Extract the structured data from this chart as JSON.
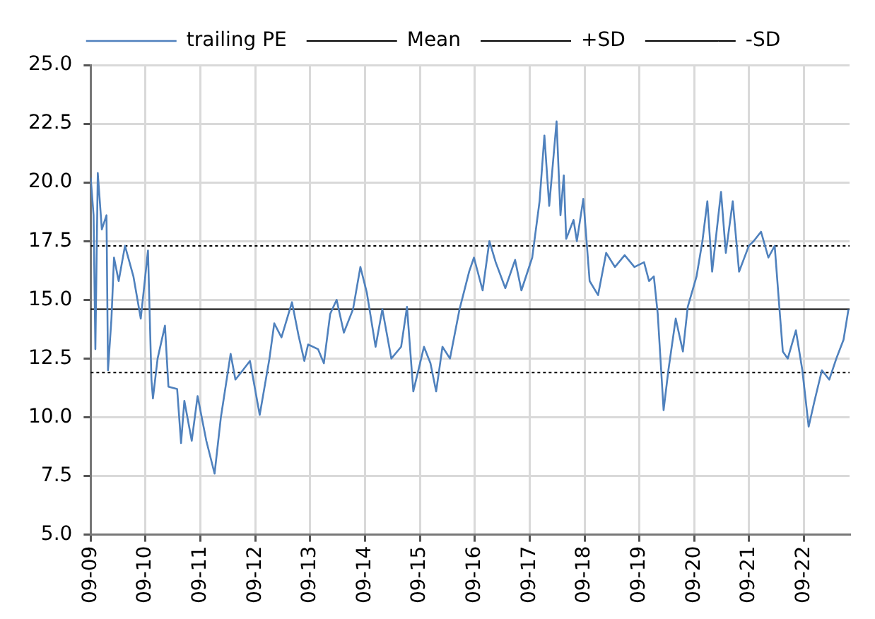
{
  "chart_data": {
    "type": "line",
    "legend": "top",
    "grid": true,
    "xlim": [
      "2009-09-01",
      "2023-07-01"
    ],
    "xticks": [
      {
        "value": "2009-09-01",
        "label": "09-09"
      },
      {
        "value": "2010-09-01",
        "label": "09-10"
      },
      {
        "value": "2011-09-01",
        "label": "09-11"
      },
      {
        "value": "2012-09-01",
        "label": "09-12"
      },
      {
        "value": "2013-09-01",
        "label": "09-13"
      },
      {
        "value": "2014-09-01",
        "label": "09-14"
      },
      {
        "value": "2015-09-01",
        "label": "09-15"
      },
      {
        "value": "2016-09-01",
        "label": "09-16"
      },
      {
        "value": "2017-09-01",
        "label": "09-17"
      },
      {
        "value": "2018-09-01",
        "label": "09-18"
      },
      {
        "value": "2019-09-01",
        "label": "09-19"
      },
      {
        "value": "2020-09-01",
        "label": "09-20"
      },
      {
        "value": "2021-09-01",
        "label": "09-21"
      },
      {
        "value": "2022-09-01",
        "label": "09-22"
      }
    ],
    "ylim": [
      5,
      25
    ],
    "yticks": [
      {
        "value": 5,
        "label": "5.0"
      },
      {
        "value": 7.5,
        "label": "7.5"
      },
      {
        "value": 10,
        "label": "10.0"
      },
      {
        "value": 12.5,
        "label": "12.5"
      },
      {
        "value": 15,
        "label": "15.0"
      },
      {
        "value": 17.5,
        "label": "17.5"
      },
      {
        "value": 20,
        "label": "20.0"
      },
      {
        "value": 22.5,
        "label": "22.5"
      },
      {
        "value": 25,
        "label": "25.0"
      }
    ],
    "series": [
      {
        "name": "trailing PE",
        "color": "#4f81bd",
        "x": [
          "2009-09-01",
          "2009-09-20",
          "2009-10-02",
          "2009-10-18",
          "2009-11-14",
          "2009-12-15",
          "2009-12-25",
          "2010-01-17",
          "2010-02-03",
          "2010-03-06",
          "2010-04-17",
          "2010-06-12",
          "2010-07-31",
          "2010-09-17",
          "2010-10-10",
          "2010-10-20",
          "2010-11-20",
          "2011-01-08",
          "2011-01-31",
          "2011-03-30",
          "2011-04-25",
          "2011-05-17",
          "2011-07-05",
          "2011-08-13",
          "2011-10-10",
          "2011-12-04",
          "2012-01-15",
          "2012-03-20",
          "2012-04-21",
          "2012-06-09",
          "2012-07-27",
          "2012-09-30",
          "2012-12-04",
          "2013-01-05",
          "2013-02-22",
          "2013-05-03",
          "2013-06-15",
          "2013-07-24",
          "2013-08-18",
          "2013-10-23",
          "2013-12-01",
          "2014-01-12",
          "2014-02-24",
          "2014-04-13",
          "2014-06-13",
          "2014-08-01",
          "2014-09-13",
          "2014-11-10",
          "2014-12-25",
          "2015-02-23",
          "2015-04-29",
          "2015-06-07",
          "2015-07-19",
          "2015-09-28",
          "2015-11-10",
          "2015-12-18",
          "2016-01-29",
          "2016-03-19",
          "2016-05-22",
          "2016-07-25",
          "2016-08-26",
          "2016-10-23",
          "2016-12-07",
          "2017-01-18",
          "2017-03-23",
          "2017-05-27",
          "2017-07-08",
          "2017-09-18",
          "2017-11-06",
          "2017-12-08",
          "2018-01-09",
          "2018-02-27",
          "2018-03-25",
          "2018-04-16",
          "2018-05-02",
          "2018-06-20",
          "2018-07-12",
          "2018-08-24",
          "2018-10-05",
          "2018-11-30",
          "2019-01-23",
          "2019-03-22",
          "2019-05-26",
          "2019-07-30",
          "2019-10-02",
          "2019-11-04",
          "2019-12-06",
          "2020-01-01",
          "2020-02-09",
          "2020-03-12",
          "2020-04-30",
          "2020-06-17",
          "2020-07-19",
          "2020-09-16",
          "2020-10-25",
          "2020-11-27",
          "2020-12-29",
          "2021-02-26",
          "2021-03-30",
          "2021-05-15",
          "2021-06-26",
          "2021-08-30",
          "2021-10-01",
          "2021-11-19",
          "2022-01-07",
          "2022-02-18",
          "2022-03-22",
          "2022-04-13",
          "2022-05-16",
          "2022-07-09",
          "2022-08-21",
          "2022-10-02",
          "2022-11-10",
          "2022-12-29",
          "2023-02-16",
          "2023-04-04",
          "2023-05-22",
          "2023-06-24"
        ],
        "values": [
          20.2,
          18.6,
          12.9,
          20.4,
          18,
          18.6,
          12,
          14.2,
          16.8,
          15.8,
          17.3,
          16,
          14.2,
          17.1,
          11.6,
          10.8,
          12.5,
          13.9,
          11.3,
          11.2,
          8.9,
          10.7,
          9,
          10.9,
          9,
          7.6,
          10,
          12.7,
          11.6,
          12,
          12.4,
          10.1,
          12.5,
          14,
          13.4,
          14.9,
          13.5,
          12.4,
          13.1,
          12.9,
          12.3,
          14.4,
          15,
          13.6,
          14.6,
          16.4,
          15.3,
          13,
          14.6,
          12.5,
          13,
          14.7,
          11.1,
          13,
          12.3,
          11.1,
          13,
          12.5,
          14.6,
          16.2,
          16.8,
          15.4,
          17.5,
          16.6,
          15.5,
          16.7,
          15.4,
          16.8,
          19.2,
          22,
          19,
          22.6,
          18.6,
          20.3,
          17.6,
          18.4,
          17.5,
          19.3,
          15.8,
          15.2,
          17,
          16.4,
          16.9,
          16.4,
          16.6,
          15.8,
          16,
          14.4,
          10.3,
          12,
          14.2,
          12.8,
          14.7,
          16,
          17.5,
          19.2,
          16.2,
          19.6,
          17,
          19.2,
          16.2,
          17.3,
          17.5,
          17.9,
          16.8,
          17.3,
          14.6,
          12.8,
          12.5,
          13.7,
          12,
          9.6,
          10.7,
          12,
          11.6,
          12.5,
          13.3,
          14.6
        ]
      }
    ],
    "ref_lines": [
      {
        "axis": "y",
        "value": 14.6,
        "label": "Mean",
        "color": "#000000",
        "line_style": "solid"
      },
      {
        "axis": "y",
        "value": 17.3,
        "label": "+SD",
        "color": "#000000",
        "line_style": "dotted"
      },
      {
        "axis": "y",
        "value": 11.9,
        "label": "-SD",
        "color": "#000000",
        "line_style": "dotted"
      }
    ]
  }
}
